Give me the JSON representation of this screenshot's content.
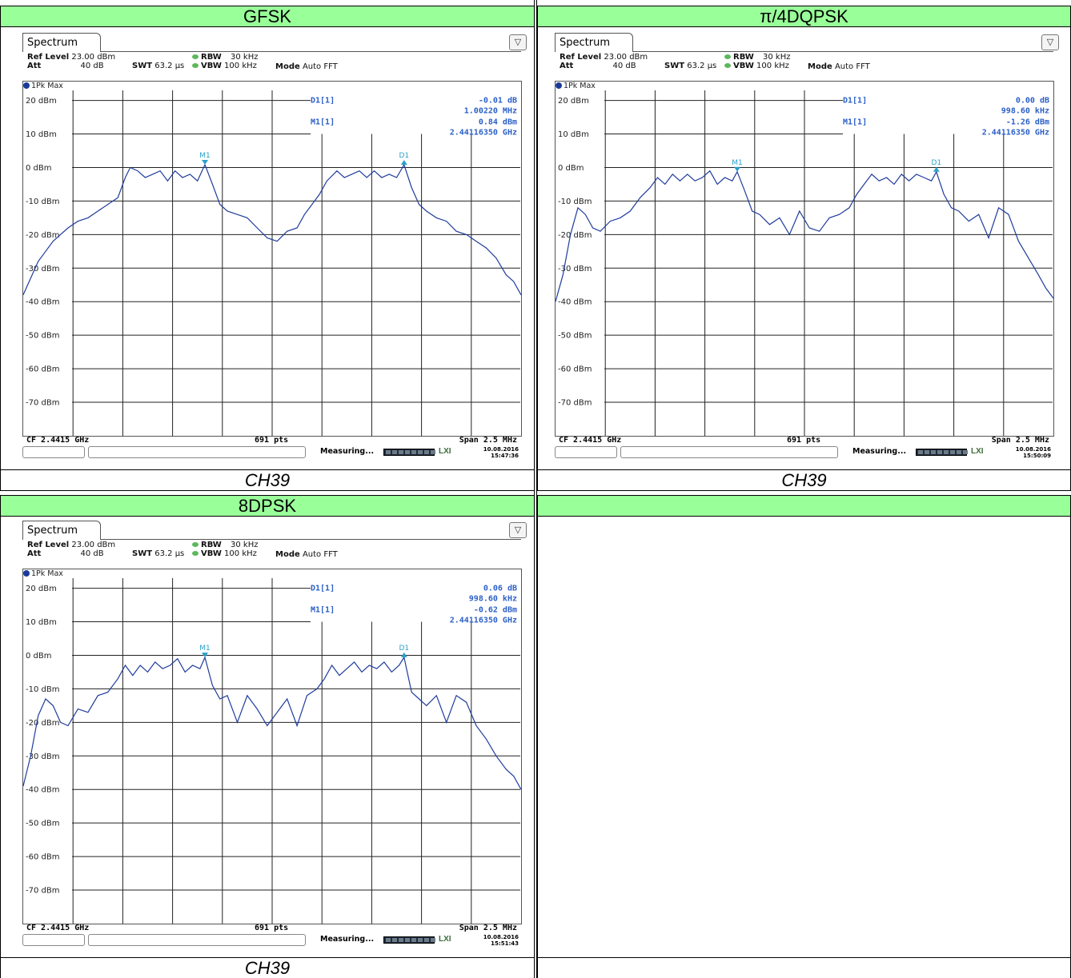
{
  "sections": [
    {
      "header": "GFSK",
      "caption": "CH39"
    },
    {
      "header": "π/4DQPSK",
      "caption": "CH39"
    },
    {
      "header": "8DPSK",
      "caption": "CH39"
    },
    {
      "header": "",
      "caption": ""
    }
  ],
  "panels": [
    {
      "tab": "Spectrum",
      "ref_level_label": "Ref Level",
      "ref_level": "23.00 dBm",
      "att_label": "Att",
      "att": "40 dB",
      "swt_label": "SWT",
      "swt": "63.2 µs",
      "rbw_label": "RBW",
      "rbw": "30 kHz",
      "vbw_label": "VBW",
      "vbw": "100 kHz",
      "mode_label": "Mode",
      "mode": "Auto FFT",
      "trace": "1Pk Max",
      "d1_label": "D1[1]",
      "d1_level": "-0.01 dB",
      "d1_freq": "1.00220 MHz",
      "m1_label": "M1[1]",
      "m1_level": "0.84 dBm",
      "m1_freq": "2.44116350 GHz",
      "cf": "CF 2.4415 GHz",
      "pts": "691 pts",
      "span": "Span 2.5 MHz",
      "status": "Measuring...",
      "date": "10.08.2016",
      "time": "15:47:36"
    },
    {
      "tab": "Spectrum",
      "ref_level_label": "Ref Level",
      "ref_level": "23.00 dBm",
      "att_label": "Att",
      "att": "40 dB",
      "swt_label": "SWT",
      "swt": "63.2 µs",
      "rbw_label": "RBW",
      "rbw": "30 kHz",
      "vbw_label": "VBW",
      "vbw": "100 kHz",
      "mode_label": "Mode",
      "mode": "Auto FFT",
      "trace": "1Pk Max",
      "d1_label": "D1[1]",
      "d1_level": "0.00 dB",
      "d1_freq": "998.60 kHz",
      "m1_label": "M1[1]",
      "m1_level": "-1.26 dBm",
      "m1_freq": "2.44116350 GHz",
      "cf": "CF 2.4415 GHz",
      "pts": "691 pts",
      "span": "Span 2.5 MHz",
      "status": "Measuring...",
      "date": "10.08.2016",
      "time": "15:50:09"
    },
    {
      "tab": "Spectrum",
      "ref_level_label": "Ref Level",
      "ref_level": "23.00 dBm",
      "att_label": "Att",
      "att": "40 dB",
      "swt_label": "SWT",
      "swt": "63.2 µs",
      "rbw_label": "RBW",
      "rbw": "30 kHz",
      "vbw_label": "VBW",
      "vbw": "100 kHz",
      "mode_label": "Mode",
      "mode": "Auto FFT",
      "trace": "1Pk Max",
      "d1_label": "D1[1]",
      "d1_level": "0.06 dB",
      "d1_freq": "998.60 kHz",
      "m1_label": "M1[1]",
      "m1_level": "-0.62 dBm",
      "m1_freq": "2.44116350 GHz",
      "cf": "CF 2.4415 GHz",
      "pts": "691 pts",
      "span": "Span 2.5 MHz",
      "status": "Measuring...",
      "date": "10.08.2016",
      "time": "15:51:43"
    }
  ],
  "chart_data": [
    {
      "type": "line",
      "xlabel": "",
      "ylabel": "",
      "ylim": [
        -80,
        23
      ],
      "xlim": [
        0,
        10
      ],
      "yticks": [
        "20 dBm",
        "10 dBm",
        "0 dBm",
        "-10 dBm",
        "-20 dBm",
        "-30 dBm",
        "-40 dBm",
        "-50 dBm",
        "-60 dBm",
        "-70 dBm"
      ],
      "ref_line_dBm": 20,
      "d1_ref_line_dBm": 10,
      "color": "#1f3c9c",
      "markers": [
        {
          "label": "M1",
          "x": 3.65,
          "y": 0.84
        },
        {
          "label": "D1",
          "x": 7.65,
          "y": 0.83
        }
      ],
      "series": [
        {
          "x": [
            0,
            0.15,
            0.3,
            0.45,
            0.6,
            0.75,
            0.9,
            1.1,
            1.3,
            1.5,
            1.7,
            1.9,
            2.05,
            2.15,
            2.3,
            2.45,
            2.6,
            2.75,
            2.9,
            3.05,
            3.2,
            3.35,
            3.5,
            3.65,
            3.8,
            3.95,
            4.1,
            4.3,
            4.5,
            4.7,
            4.9,
            5.1,
            5.3,
            5.5,
            5.65,
            5.8,
            5.95,
            6.1,
            6.3,
            6.45,
            6.6,
            6.75,
            6.9,
            7.05,
            7.2,
            7.35,
            7.5,
            7.65,
            7.8,
            7.95,
            8.1,
            8.3,
            8.5,
            8.7,
            8.9,
            9.1,
            9.3,
            9.5,
            9.7,
            9.85,
            10
          ],
          "values": [
            -38,
            -33,
            -28,
            -25,
            -22,
            -20,
            -18,
            -16,
            -15,
            -13,
            -11,
            -9,
            -3,
            0,
            -1,
            -3,
            -2,
            -1,
            -4,
            -1,
            -3,
            -2,
            -4,
            0.84,
            -5,
            -11,
            -13,
            -14,
            -15,
            -18,
            -21,
            -22,
            -19,
            -18,
            -14,
            -11,
            -8,
            -4,
            -1,
            -3,
            -2,
            -1,
            -3,
            -1,
            -3,
            -2,
            -3,
            0.8,
            -6,
            -11,
            -13,
            -15,
            -16,
            -19,
            -20,
            -22,
            -24,
            -27,
            -32,
            -34,
            -38
          ]
        }
      ]
    },
    {
      "type": "line",
      "xlabel": "",
      "ylabel": "",
      "ylim": [
        -80,
        23
      ],
      "xlim": [
        0,
        10
      ],
      "yticks": [
        "20 dBm",
        "10 dBm",
        "0 dBm",
        "-10 dBm",
        "-20 dBm",
        "-30 dBm",
        "-40 dBm",
        "-50 dBm",
        "-60 dBm",
        "-70 dBm"
      ],
      "ref_line_dBm": 20,
      "d1_ref_line_dBm": 10,
      "color": "#1f3c9c",
      "markers": [
        {
          "label": "M1",
          "x": 3.65,
          "y": -1.26
        },
        {
          "label": "D1",
          "x": 7.65,
          "y": -1.26
        }
      ],
      "series": [
        {
          "x": [
            0,
            0.15,
            0.3,
            0.45,
            0.6,
            0.75,
            0.9,
            1.1,
            1.3,
            1.5,
            1.7,
            1.9,
            2.05,
            2.2,
            2.35,
            2.5,
            2.65,
            2.8,
            2.95,
            3.1,
            3.25,
            3.4,
            3.55,
            3.65,
            3.8,
            3.95,
            4.1,
            4.3,
            4.5,
            4.7,
            4.9,
            5.1,
            5.3,
            5.5,
            5.7,
            5.9,
            6.05,
            6.2,
            6.35,
            6.5,
            6.65,
            6.8,
            6.95,
            7.1,
            7.25,
            7.4,
            7.55,
            7.65,
            7.8,
            7.95,
            8.1,
            8.3,
            8.5,
            8.7,
            8.9,
            9.1,
            9.3,
            9.5,
            9.7,
            9.85,
            10
          ],
          "values": [
            -40,
            -32,
            -20,
            -12,
            -14,
            -18,
            -19,
            -16,
            -15,
            -13,
            -9,
            -6,
            -3,
            -5,
            -2,
            -4,
            -2,
            -4,
            -3,
            -1,
            -5,
            -3,
            -4,
            -1.26,
            -7,
            -13,
            -14,
            -17,
            -15,
            -20,
            -13,
            -18,
            -19,
            -15,
            -14,
            -12,
            -8,
            -5,
            -2,
            -4,
            -3,
            -5,
            -2,
            -4,
            -2,
            -3,
            -4,
            -1.3,
            -8,
            -12,
            -13,
            -16,
            -14,
            -21,
            -12,
            -14,
            -22,
            -27,
            -32,
            -36,
            -39
          ]
        }
      ]
    },
    {
      "type": "line",
      "xlabel": "",
      "ylabel": "",
      "ylim": [
        -80,
        23
      ],
      "xlim": [
        0,
        10
      ],
      "yticks": [
        "20 dBm",
        "10 dBm",
        "0 dBm",
        "-10 dBm",
        "-20 dBm",
        "-30 dBm",
        "-40 dBm",
        "-50 dBm",
        "-60 dBm",
        "-70 dBm"
      ],
      "ref_line_dBm": 20,
      "d1_ref_line_dBm": 10,
      "color": "#1f3c9c",
      "markers": [
        {
          "label": "M1",
          "x": 3.65,
          "y": -0.62
        },
        {
          "label": "D1",
          "x": 7.65,
          "y": -0.56
        }
      ],
      "series": [
        {
          "x": [
            0,
            0.15,
            0.3,
            0.45,
            0.6,
            0.75,
            0.9,
            1.1,
            1.3,
            1.5,
            1.7,
            1.9,
            2.05,
            2.2,
            2.35,
            2.5,
            2.65,
            2.8,
            2.95,
            3.1,
            3.25,
            3.4,
            3.55,
            3.65,
            3.8,
            3.95,
            4.1,
            4.3,
            4.5,
            4.7,
            4.9,
            5.1,
            5.3,
            5.5,
            5.7,
            5.9,
            6.05,
            6.2,
            6.35,
            6.5,
            6.65,
            6.8,
            6.95,
            7.1,
            7.25,
            7.4,
            7.55,
            7.65,
            7.8,
            7.95,
            8.1,
            8.3,
            8.5,
            8.7,
            8.9,
            9.1,
            9.3,
            9.5,
            9.7,
            9.85,
            10
          ],
          "values": [
            -39,
            -30,
            -18,
            -13,
            -15,
            -20,
            -21,
            -16,
            -17,
            -12,
            -11,
            -7,
            -3,
            -6,
            -3,
            -5,
            -2,
            -4,
            -3,
            -1,
            -5,
            -3,
            -4,
            -0.62,
            -9,
            -13,
            -12,
            -20,
            -12,
            -16,
            -21,
            -17,
            -13,
            -21,
            -12,
            -10,
            -7,
            -3,
            -6,
            -4,
            -2,
            -5,
            -3,
            -4,
            -2,
            -5,
            -3,
            -0.6,
            -11,
            -13,
            -15,
            -12,
            -20,
            -12,
            -14,
            -21,
            -25,
            -30,
            -34,
            -36,
            -40
          ]
        }
      ]
    }
  ]
}
